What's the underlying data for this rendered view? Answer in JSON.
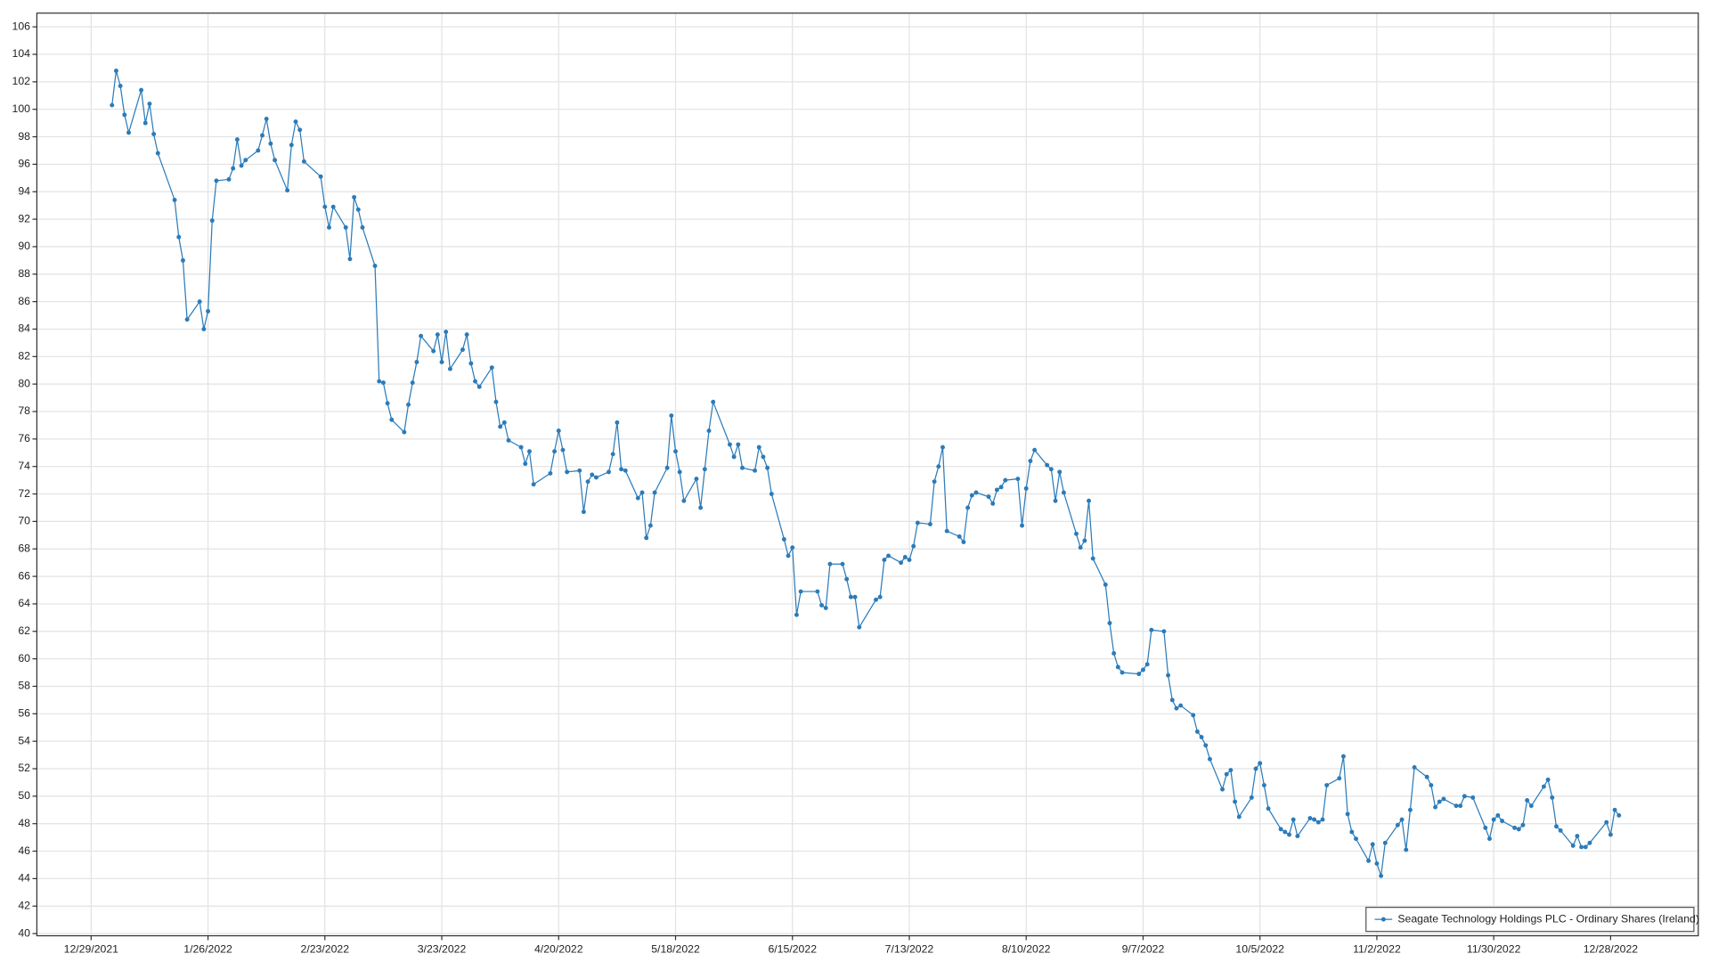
{
  "chart_data": {
    "type": "line",
    "xlim": [
      "12/16/2021",
      "1/18/2023"
    ],
    "xticks": [
      "12/29/2021",
      "1/26/2022",
      "2/23/2022",
      "3/23/2022",
      "4/20/2022",
      "5/18/2022",
      "6/15/2022",
      "7/13/2022",
      "8/10/2022",
      "9/7/2022",
      "10/5/2022",
      "11/2/2022",
      "11/30/2022",
      "12/28/2022"
    ],
    "ylim": [
      40,
      107
    ],
    "yticks": [
      40,
      42,
      44,
      46,
      48,
      50,
      52,
      54,
      56,
      58,
      60,
      62,
      64,
      66,
      68,
      70,
      72,
      74,
      76,
      78,
      80,
      82,
      84,
      86,
      88,
      90,
      92,
      94,
      96,
      98,
      100,
      102,
      104,
      106
    ],
    "grid": true,
    "legend": "lower right",
    "x": [
      "1/3/2022",
      "1/4/2022",
      "1/5/2022",
      "1/6/2022",
      "1/7/2022",
      "1/10/2022",
      "1/11/2022",
      "1/12/2022",
      "1/13/2022",
      "1/14/2022",
      "1/18/2022",
      "1/19/2022",
      "1/20/2022",
      "1/21/2022",
      "1/24/2022",
      "1/25/2022",
      "1/26/2022",
      "1/27/2022",
      "1/28/2022",
      "1/31/2022",
      "2/1/2022",
      "2/2/2022",
      "2/3/2022",
      "2/4/2022",
      "2/7/2022",
      "2/8/2022",
      "2/9/2022",
      "2/10/2022",
      "2/11/2022",
      "2/14/2022",
      "2/15/2022",
      "2/16/2022",
      "2/17/2022",
      "2/18/2022",
      "2/22/2022",
      "2/23/2022",
      "2/24/2022",
      "2/25/2022",
      "2/28/2022",
      "3/1/2022",
      "3/2/2022",
      "3/3/2022",
      "3/4/2022",
      "3/7/2022",
      "3/8/2022",
      "3/9/2022",
      "3/10/2022",
      "3/11/2022",
      "3/14/2022",
      "3/15/2022",
      "3/16/2022",
      "3/17/2022",
      "3/18/2022",
      "3/21/2022",
      "3/22/2022",
      "3/23/2022",
      "3/24/2022",
      "3/25/2022",
      "3/28/2022",
      "3/29/2022",
      "3/30/2022",
      "3/31/2022",
      "4/1/2022",
      "4/4/2022",
      "4/5/2022",
      "4/6/2022",
      "4/7/2022",
      "4/8/2022",
      "4/11/2022",
      "4/12/2022",
      "4/13/2022",
      "4/14/2022",
      "4/18/2022",
      "4/19/2022",
      "4/20/2022",
      "4/21/2022",
      "4/22/2022",
      "4/25/2022",
      "4/26/2022",
      "4/27/2022",
      "4/28/2022",
      "4/29/2022",
      "5/2/2022",
      "5/3/2022",
      "5/4/2022",
      "5/5/2022",
      "5/6/2022",
      "5/9/2022",
      "5/10/2022",
      "5/11/2022",
      "5/12/2022",
      "5/13/2022",
      "5/16/2022",
      "5/17/2022",
      "5/18/2022",
      "5/19/2022",
      "5/20/2022",
      "5/23/2022",
      "5/24/2022",
      "5/25/2022",
      "5/26/2022",
      "5/27/2022",
      "5/31/2022",
      "6/1/2022",
      "6/2/2022",
      "6/3/2022",
      "6/6/2022",
      "6/7/2022",
      "6/8/2022",
      "6/9/2022",
      "6/10/2022",
      "6/13/2022",
      "6/14/2022",
      "6/15/2022",
      "6/16/2022",
      "6/17/2022",
      "6/21/2022",
      "6/22/2022",
      "6/23/2022",
      "6/24/2022",
      "6/27/2022",
      "6/28/2022",
      "6/29/2022",
      "6/30/2022",
      "7/1/2022",
      "7/5/2022",
      "7/6/2022",
      "7/7/2022",
      "7/8/2022",
      "7/11/2022",
      "7/12/2022",
      "7/13/2022",
      "7/14/2022",
      "7/15/2022",
      "7/18/2022",
      "7/19/2022",
      "7/20/2022",
      "7/21/2022",
      "7/22/2022",
      "7/25/2022",
      "7/26/2022",
      "7/27/2022",
      "7/28/2022",
      "7/29/2022",
      "8/1/2022",
      "8/2/2022",
      "8/3/2022",
      "8/4/2022",
      "8/5/2022",
      "8/8/2022",
      "8/9/2022",
      "8/10/2022",
      "8/11/2022",
      "8/12/2022",
      "8/15/2022",
      "8/16/2022",
      "8/17/2022",
      "8/18/2022",
      "8/19/2022",
      "8/22/2022",
      "8/23/2022",
      "8/24/2022",
      "8/25/2022",
      "8/26/2022",
      "8/29/2022",
      "8/30/2022",
      "8/31/2022",
      "9/1/2022",
      "9/2/2022",
      "9/6/2022",
      "9/7/2022",
      "9/8/2022",
      "9/9/2022",
      "9/12/2022",
      "9/13/2022",
      "9/14/2022",
      "9/15/2022",
      "9/16/2022",
      "9/19/2022",
      "9/20/2022",
      "9/21/2022",
      "9/22/2022",
      "9/23/2022",
      "9/26/2022",
      "9/27/2022",
      "9/28/2022",
      "9/29/2022",
      "9/30/2022",
      "10/3/2022",
      "10/4/2022",
      "10/5/2022",
      "10/6/2022",
      "10/7/2022",
      "10/10/2022",
      "10/11/2022",
      "10/12/2022",
      "10/13/2022",
      "10/14/2022",
      "10/17/2022",
      "10/18/2022",
      "10/19/2022",
      "10/20/2022",
      "10/21/2022",
      "10/24/2022",
      "10/25/2022",
      "10/26/2022",
      "10/27/2022",
      "10/28/2022",
      "10/31/2022",
      "11/1/2022",
      "11/2/2022",
      "11/3/2022",
      "11/4/2022",
      "11/7/2022",
      "11/8/2022",
      "11/9/2022",
      "11/10/2022",
      "11/11/2022",
      "11/14/2022",
      "11/15/2022",
      "11/16/2022",
      "11/17/2022",
      "11/18/2022",
      "11/21/2022",
      "11/22/2022",
      "11/23/2022",
      "11/25/2022",
      "11/28/2022",
      "11/29/2022",
      "11/30/2022",
      "12/1/2022",
      "12/2/2022",
      "12/5/2022",
      "12/6/2022",
      "12/7/2022",
      "12/8/2022",
      "12/9/2022",
      "12/12/2022",
      "12/13/2022",
      "12/14/2022",
      "12/15/2022",
      "12/16/2022",
      "12/19/2022",
      "12/20/2022",
      "12/21/2022",
      "12/22/2022",
      "12/23/2022",
      "12/27/2022",
      "12/28/2022",
      "12/29/2022",
      "12/30/2022"
    ],
    "series": [
      {
        "name": "Seagate Technology Holdings PLC - Ordinary Shares (Ireland)",
        "color": "#2b7bb9",
        "values": [
          100.3,
          102.8,
          101.7,
          99.6,
          98.3,
          101.4,
          99.0,
          100.4,
          98.2,
          96.8,
          93.4,
          90.7,
          89.0,
          84.7,
          86.0,
          84.0,
          85.3,
          91.9,
          94.8,
          94.9,
          95.7,
          97.8,
          95.9,
          96.3,
          97.0,
          98.1,
          99.3,
          97.5,
          96.3,
          94.1,
          97.4,
          99.1,
          98.5,
          96.2,
          95.1,
          92.9,
          91.4,
          92.9,
          91.4,
          89.1,
          93.6,
          92.7,
          91.4,
          88.6,
          80.2,
          80.1,
          78.6,
          77.4,
          76.5,
          78.5,
          80.1,
          81.6,
          83.5,
          82.4,
          83.6,
          81.6,
          83.8,
          81.1,
          82.5,
          83.6,
          81.5,
          80.2,
          79.8,
          81.2,
          78.7,
          76.9,
          77.2,
          75.9,
          75.4,
          74.2,
          75.1,
          72.7,
          73.5,
          75.1,
          76.6,
          75.2,
          73.6,
          73.7,
          70.7,
          72.9,
          73.4,
          73.2,
          73.6,
          74.9,
          77.2,
          73.8,
          73.7,
          71.7,
          72.1,
          68.8,
          69.7,
          72.1,
          73.9,
          77.7,
          75.1,
          73.6,
          71.5,
          73.1,
          71.0,
          73.8,
          76.6,
          78.7,
          75.6,
          74.7,
          75.6,
          73.9,
          73.7,
          75.4,
          74.7,
          73.9,
          72.0,
          68.7,
          67.5,
          68.1,
          63.2,
          64.9,
          64.9,
          63.9,
          63.7,
          66.9,
          66.9,
          65.8,
          64.5,
          64.5,
          62.3,
          64.3,
          64.5,
          67.2,
          67.5,
          67.0,
          67.4,
          67.2,
          68.2,
          69.9,
          69.8,
          72.9,
          74.0,
          75.4,
          69.3,
          68.9,
          68.5,
          71.0,
          71.9,
          72.1,
          71.8,
          71.3,
          72.3,
          72.5,
          73.0,
          73.1,
          69.7,
          72.4,
          74.4,
          75.2,
          74.1,
          73.8,
          71.5,
          73.6,
          72.1,
          69.1,
          68.1,
          68.6,
          71.5,
          67.3,
          65.4,
          62.6,
          60.4,
          59.4,
          59.0,
          58.9,
          59.2,
          59.6,
          62.1,
          62.0,
          58.8,
          57.0,
          56.4,
          56.6,
          55.9,
          54.7,
          54.3,
          53.7,
          52.7,
          50.5,
          51.6,
          51.9,
          49.6,
          48.5,
          49.9,
          52.0,
          52.4,
          50.8,
          49.1,
          47.6,
          47.4,
          47.2,
          48.3,
          47.1,
          48.4,
          48.3,
          48.1,
          48.3,
          50.8,
          51.3,
          52.9,
          48.7,
          47.4,
          46.9,
          45.3,
          46.5,
          45.1,
          44.2,
          46.6,
          47.9,
          48.3,
          46.1,
          49.0,
          52.1,
          51.4,
          50.8,
          49.2,
          49.6,
          49.8,
          49.3,
          49.3,
          50.0,
          49.9,
          47.7,
          46.9,
          48.3,
          48.6,
          48.2,
          47.7,
          47.6,
          47.9,
          49.7,
          49.3,
          50.7,
          51.2,
          49.9,
          47.8,
          47.5,
          46.4,
          47.1,
          46.3,
          46.3,
          46.6,
          48.1,
          47.2,
          49.0,
          48.6
        ]
      }
    ]
  }
}
